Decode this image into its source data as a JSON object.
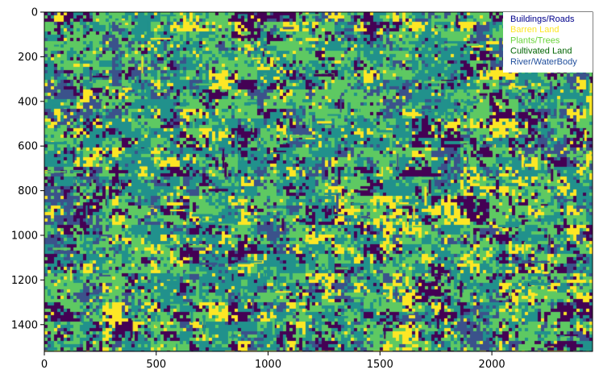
{
  "chart_data": {
    "type": "heatmap",
    "title": "",
    "xlabel": "",
    "ylabel": "",
    "xlim": [
      0,
      2450
    ],
    "ylim": [
      1520,
      0
    ],
    "x_ticks": [
      0,
      500,
      1000,
      1500,
      2000
    ],
    "y_ticks": [
      0,
      200,
      400,
      600,
      800,
      1000,
      1200,
      1400
    ],
    "grid": false,
    "legend_position": "top-right",
    "legend": [
      {
        "label": "Buildings/Roads",
        "color": "#00008b"
      },
      {
        "label": "Barren Land",
        "color": "#fde725"
      },
      {
        "label": "Plants/Trees",
        "color": "#6ad33a"
      },
      {
        "label": "Cultivated Land",
        "color": "#006400"
      },
      {
        "label": "River/WaterBody",
        "color": "#1f4e9c"
      }
    ],
    "classes": [
      {
        "name": "dark-purple",
        "color": "#440154",
        "share": 0.14
      },
      {
        "name": "blue",
        "color": "#3b528b",
        "share": 0.13
      },
      {
        "name": "teal",
        "color": "#21918c",
        "share": 0.3
      },
      {
        "name": "green",
        "color": "#5ec962",
        "share": 0.31
      },
      {
        "name": "yellow",
        "color": "#fde725",
        "share": 0.12
      }
    ]
  }
}
